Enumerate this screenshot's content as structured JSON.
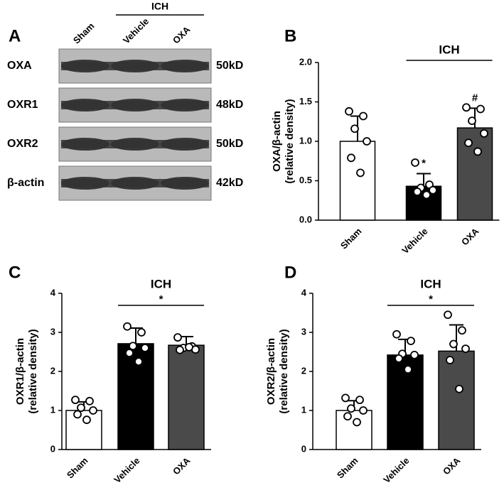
{
  "panel_a": {
    "label": "A",
    "group_label": "ICH",
    "lanes": [
      "Sham",
      "Vehicle",
      "OXA"
    ],
    "rows": [
      {
        "protein": "OXA",
        "size": "50kD"
      },
      {
        "protein": "OXR1",
        "size": "48kD"
      },
      {
        "protein": "OXR2",
        "size": "50kD"
      },
      {
        "protein": "β-actin",
        "size": "42kD"
      }
    ]
  },
  "chart_data": [
    {
      "type": "bar",
      "panel_label": "B",
      "ylabel": [
        "OXA/β-actin",
        "(relative density)"
      ],
      "categories": [
        "Sham",
        "Vehicle",
        "OXA"
      ],
      "colors": [
        "#ffffff",
        "#000000",
        "#4a4a4a"
      ],
      "values": [
        1.0,
        0.43,
        1.17
      ],
      "errors": [
        0.32,
        0.16,
        0.25
      ],
      "points": [
        [
          1.38,
          1.32,
          1.16,
          1.0,
          0.79,
          0.6
        ],
        [
          0.73,
          0.45,
          0.41,
          0.38,
          0.36,
          0.32
        ],
        [
          1.43,
          1.41,
          1.26,
          1.1,
          0.98,
          0.87
        ]
      ],
      "bar_marks": [
        null,
        "*",
        "#"
      ],
      "bracket_label": "ICH",
      "ylim": [
        0,
        2
      ],
      "yticks": [
        {
          "value": 0,
          "label": "0.0"
        },
        {
          "value": 0.5,
          "label": "0.5"
        },
        {
          "value": 1,
          "label": "1.0"
        },
        {
          "value": 1.5,
          "label": "1.5"
        },
        {
          "value": 2,
          "label": "2.0"
        }
      ]
    },
    {
      "type": "bar",
      "panel_label": "C",
      "ylabel": [
        "OXR1/β-actin",
        "(relative density)"
      ],
      "categories": [
        "Sham",
        "Vehicle",
        "OXA"
      ],
      "colors": [
        "#ffffff",
        "#000000",
        "#4a4a4a"
      ],
      "values": [
        1.0,
        2.71,
        2.67
      ],
      "errors": [
        0.22,
        0.4,
        0.22
      ],
      "points": [
        [
          1.27,
          1.24,
          1.07,
          1.0,
          0.9,
          0.76
        ],
        [
          3.15,
          3.0,
          2.65,
          2.6,
          2.47,
          2.25
        ],
        [
          2.87,
          2.64,
          2.6,
          2.56,
          2.55,
          2.62
        ]
      ],
      "bracket_label": "ICH",
      "bracket_mark": "*",
      "ylim": [
        0,
        4
      ],
      "yticks": [
        0,
        1,
        2,
        3,
        4
      ]
    },
    {
      "type": "bar",
      "panel_label": "D",
      "ylabel": [
        "OXR2/β-actin",
        "(relative density)"
      ],
      "categories": [
        "Sham",
        "Vehicle",
        "OXA"
      ],
      "colors": [
        "#ffffff",
        "#000000",
        "#4a4a4a"
      ],
      "values": [
        1.0,
        2.42,
        2.52
      ],
      "errors": [
        0.25,
        0.4,
        0.67
      ],
      "points": [
        [
          1.32,
          1.27,
          1.05,
          1.0,
          0.85,
          0.7
        ],
        [
          2.95,
          2.78,
          2.45,
          2.42,
          2.33,
          2.05
        ],
        [
          3.45,
          3.05,
          2.7,
          2.58,
          2.29,
          1.55
        ]
      ],
      "bracket_label": "ICH",
      "bracket_mark": "*",
      "ylim": [
        0,
        4
      ],
      "yticks": [
        0,
        1,
        2,
        3,
        4
      ]
    }
  ]
}
